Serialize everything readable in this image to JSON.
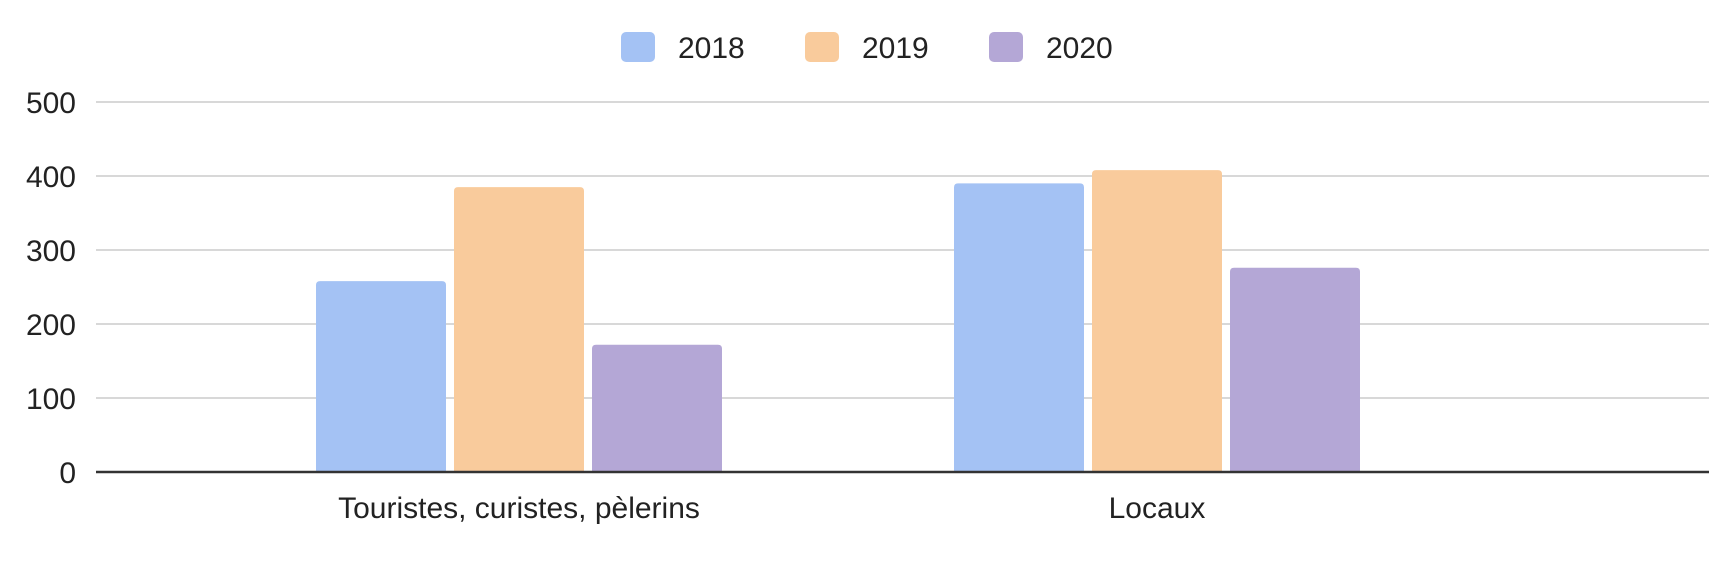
{
  "chart_data": {
    "type": "bar",
    "title": "",
    "xlabel": "",
    "ylabel": "",
    "categories": [
      "Touristes, curistes, pèlerins",
      "Locaux"
    ],
    "series": [
      {
        "name": "2018",
        "color": "#a4c2f4",
        "values": [
          258,
          390
        ]
      },
      {
        "name": "2019",
        "color": "#f9cb9c",
        "values": [
          385,
          408
        ]
      },
      {
        "name": "2020",
        "color": "#b4a7d6",
        "values": [
          172,
          276
        ]
      }
    ],
    "ylim": [
      0,
      500
    ],
    "yticks": [
      "0",
      "100",
      "200",
      "300",
      "400",
      "500"
    ],
    "grid": true,
    "legend": "top-center",
    "grid_color": "#cccccc",
    "axis_color": "#333333"
  }
}
